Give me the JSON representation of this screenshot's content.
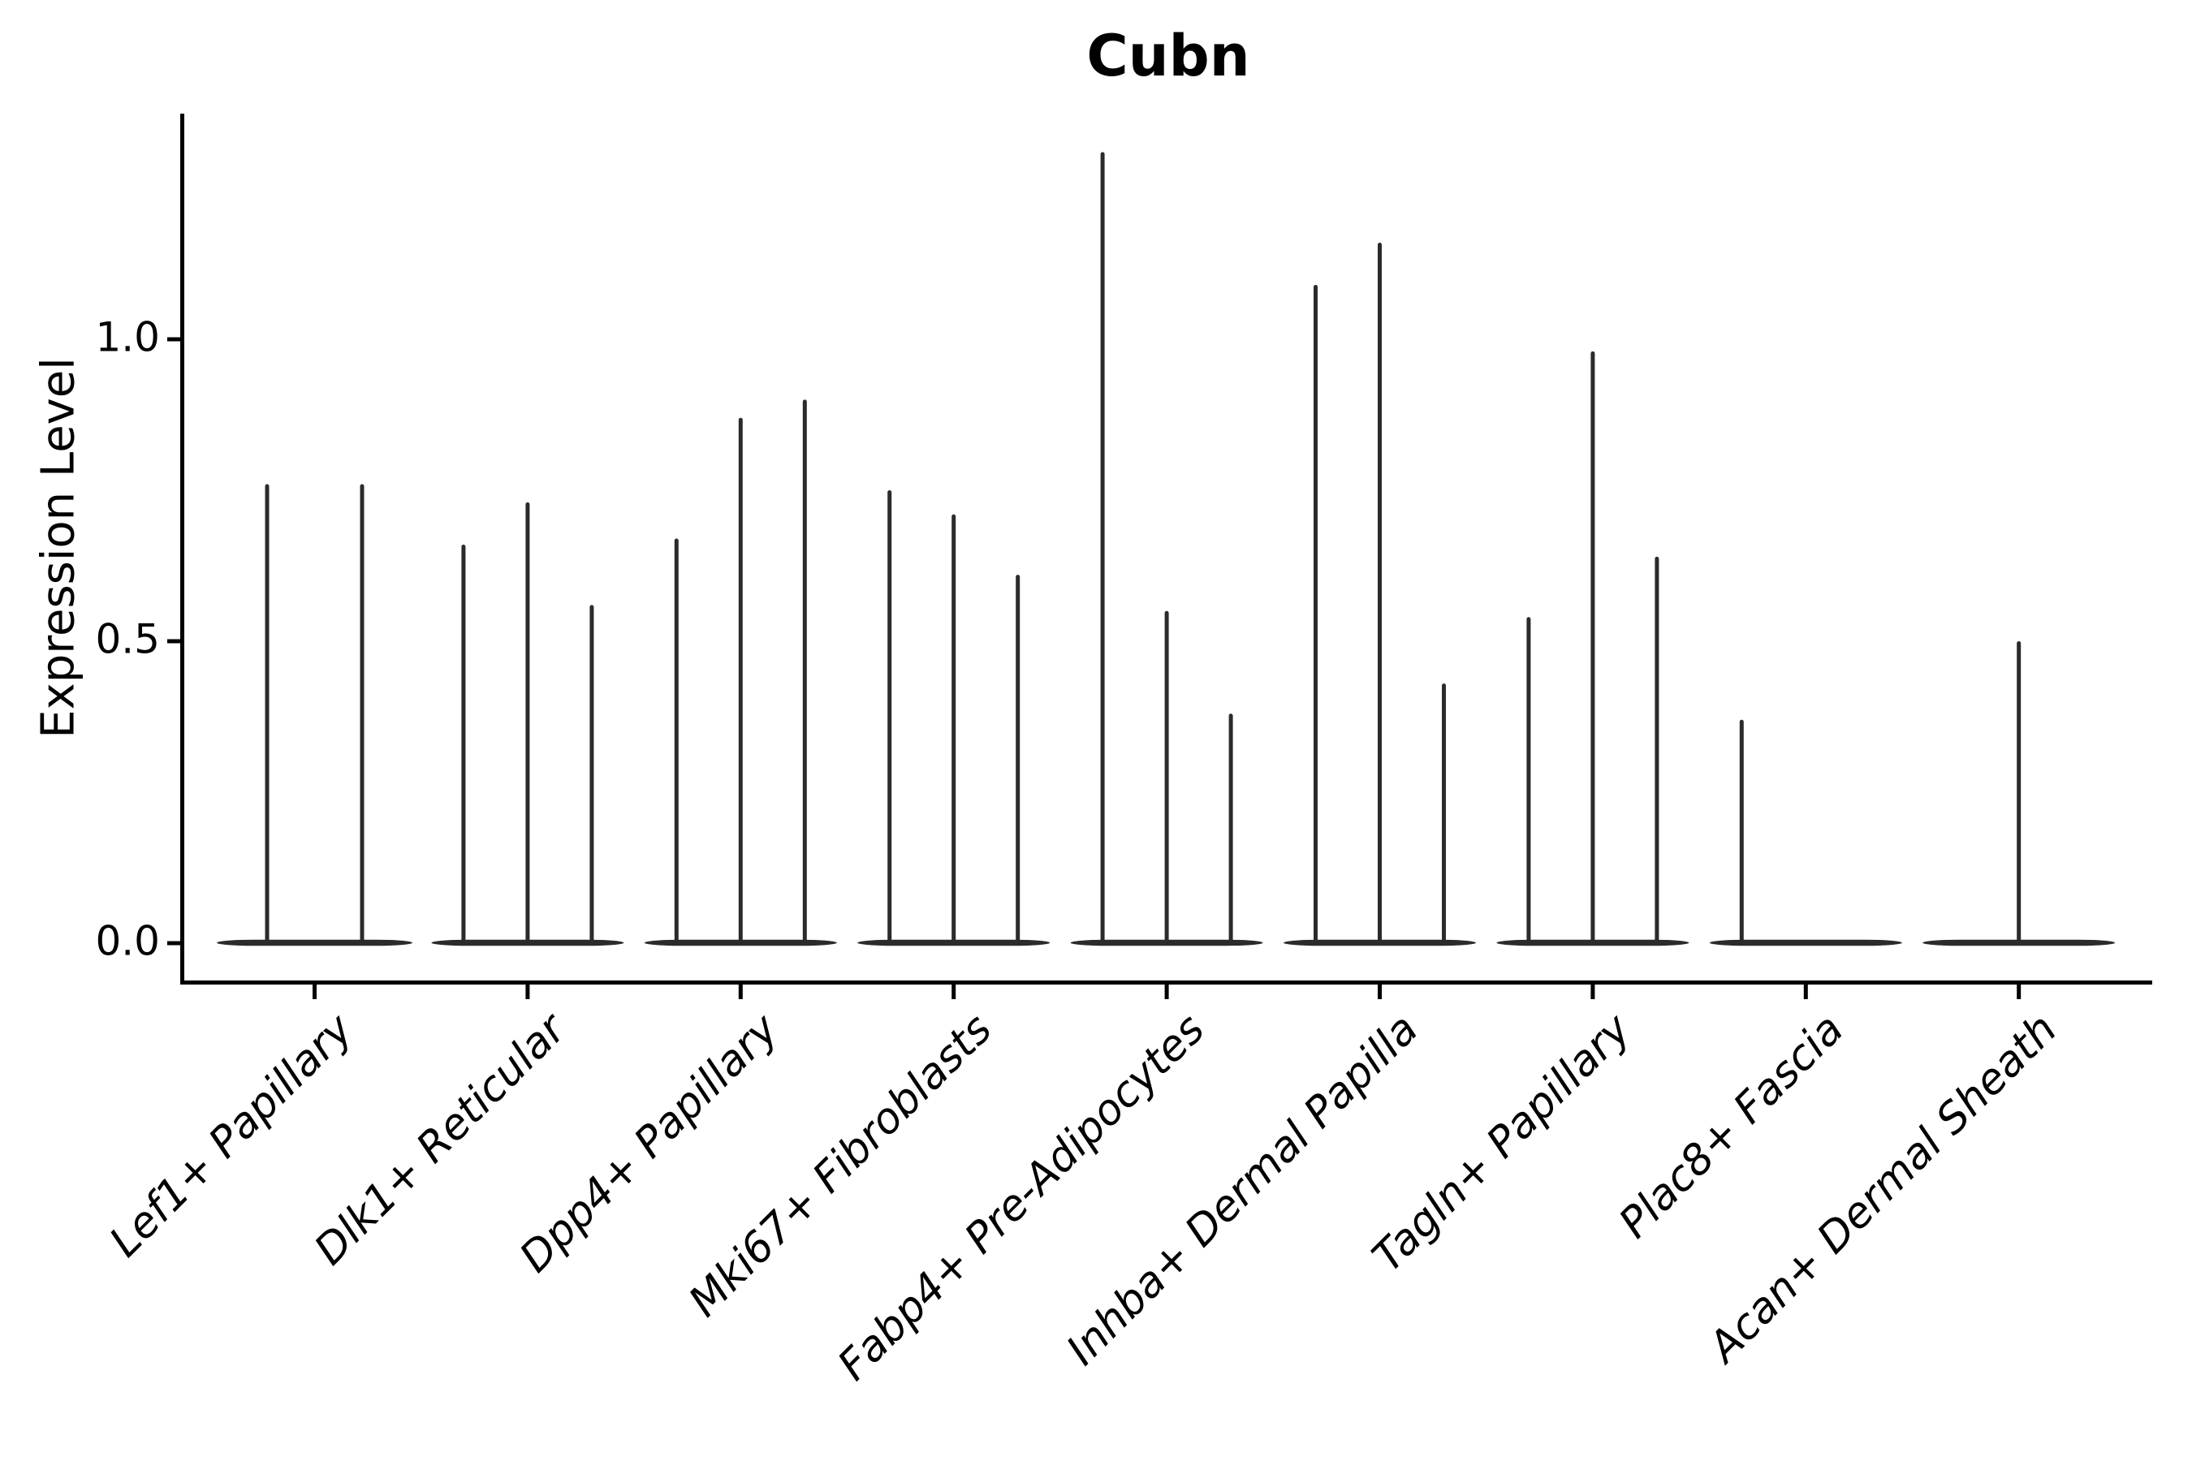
{
  "chart_data": {
    "type": "violin",
    "title": "Cubn",
    "ylabel": "Expression Level",
    "xlabel": "",
    "grid": false,
    "legend": "none",
    "ylim": [
      -0.06,
      1.37
    ],
    "yticks": [
      {
        "label": "0.0",
        "value": 0.0
      },
      {
        "label": "0.5",
        "value": 0.5
      },
      {
        "label": "1.0",
        "value": 1.0
      }
    ],
    "categories": [
      "Lef1+ Papillary",
      "Dlk1+ Reticular",
      "Dpp4+ Papillary",
      "Mki67+ Fibroblasts",
      "Fabp4+ Pre-Adipocytes",
      "Inhba+ Dermal Papilla",
      "Tagln+ Papillary",
      "Plac8+ Fascia",
      "Acan+ Dermal Sheath"
    ],
    "groups": [
      {
        "category": "Lef1+ Papillary",
        "violin_max_values": [
          0.76,
          0.76
        ]
      },
      {
        "category": "Dlk1+ Reticular",
        "violin_max_values": [
          0.66,
          0.73,
          0.56
        ]
      },
      {
        "category": "Dpp4+ Papillary",
        "violin_max_values": [
          0.67,
          0.87,
          0.9
        ]
      },
      {
        "category": "Mki67+ Fibroblasts",
        "violin_max_values": [
          0.75,
          0.71,
          0.61
        ]
      },
      {
        "category": "Fabp4+ Pre-Adipocytes",
        "violin_max_values": [
          1.31,
          0.55,
          0.38
        ]
      },
      {
        "category": "Inhba+ Dermal Papilla",
        "violin_max_values": [
          1.09,
          1.16,
          0.43
        ]
      },
      {
        "category": "Tagln+ Papillary",
        "violin_max_values": [
          0.54,
          0.98,
          0.64
        ]
      },
      {
        "category": "Plac8+ Fascia",
        "violin_max_values": [
          0.37,
          0.0,
          0.0
        ]
      },
      {
        "category": "Acan+ Dermal Sheath",
        "violin_max_values": [
          0.0,
          0.5,
          0.0
        ]
      }
    ],
    "colors": {
      "violin": "#2b2b2b",
      "axis": "#000000",
      "text": "#000000",
      "background": "#ffffff"
    }
  }
}
